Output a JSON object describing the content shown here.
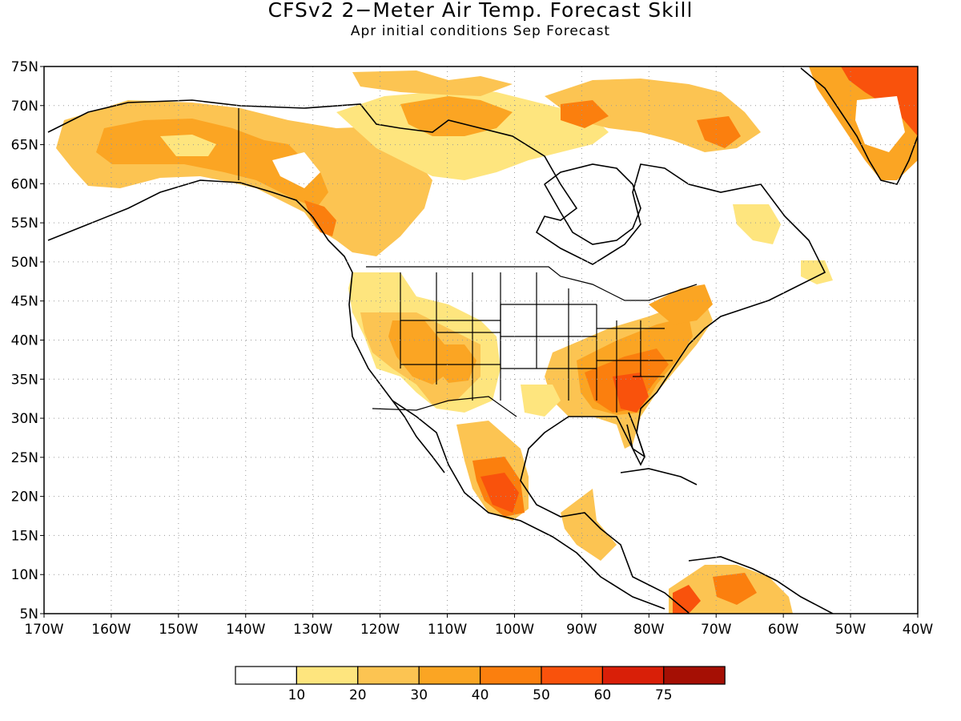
{
  "title": "CFSv2 2−Meter Air Temp. Forecast Skill",
  "subtitle": "Apr initial conditions  Sep Forecast",
  "map": {
    "lon_range": [
      -170,
      -40
    ],
    "lat_range": [
      5,
      75
    ],
    "lat_ticks": [
      "75N",
      "70N",
      "65N",
      "60N",
      "55N",
      "50N",
      "45N",
      "40N",
      "35N",
      "30N",
      "25N",
      "20N",
      "15N",
      "10N",
      "5N"
    ],
    "lon_ticks": [
      "170W",
      "160W",
      "150W",
      "140W",
      "130W",
      "120W",
      "110W",
      "100W",
      "90W",
      "80W",
      "70W",
      "60W",
      "50W",
      "40W"
    ],
    "gridlines": "dotted"
  },
  "legend": {
    "levels": [
      "10",
      "20",
      "30",
      "40",
      "50",
      "60",
      "75"
    ],
    "colors": [
      "#ffffff",
      "#fee57e",
      "#fcc452",
      "#fba523",
      "#fb7f0e",
      "#f9520c",
      "#d91f08",
      "#a50f04"
    ]
  },
  "colors": {
    "c10": "#fee57e",
    "c20": "#fcc452",
    "c30": "#fba523",
    "c40": "#fb7f0e",
    "c50": "#f9520c",
    "c60": "#d91f08"
  }
}
